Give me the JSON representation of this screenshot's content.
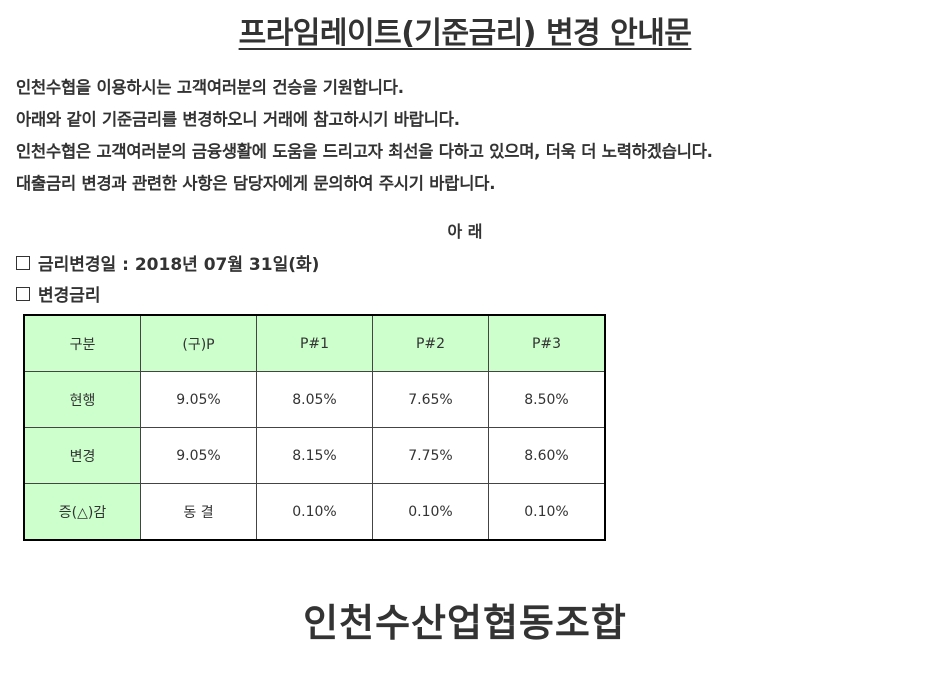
{
  "document": {
    "title": "프라임레이트(기준금리) 변경 안내문",
    "intro_lines": [
      "인천수협을 이용하시는 고객여러분의 건승을 기원합니다.",
      "아래와 같이 기준금리를 변경하오니 거래에 참고하시기 바랍니다.",
      "인천수협은 고객여러분의 금융생활에 도움을 드리고자 최선을 다하고 있으며, 더욱 더 노력하겠습니다.",
      "대출금리 변경과 관련한 사항은 담당자에게 문의하여 주시기 바랍니다."
    ],
    "notice_heading": "아 래",
    "date_item": "금리변경일 : 2018년 07월 31일(화)",
    "rates_item": "변경금리",
    "organization": "인천수산업협동조합"
  },
  "rate_table": {
    "headers": [
      "구분",
      "(구)P",
      "P#1",
      "P#2",
      "P#3"
    ],
    "rows": [
      {
        "label": "현행",
        "values": [
          "9.05%",
          "8.05%",
          "7.65%",
          "8.50%"
        ]
      },
      {
        "label": "변경",
        "values": [
          "9.05%",
          "8.15%",
          "7.75%",
          "8.60%"
        ]
      },
      {
        "label": "증(△)감",
        "values": [
          "동 결",
          "0.10%",
          "0.10%",
          "0.10%"
        ]
      }
    ]
  },
  "colors": {
    "header_background": "#ccffcc",
    "text": "#333333"
  }
}
